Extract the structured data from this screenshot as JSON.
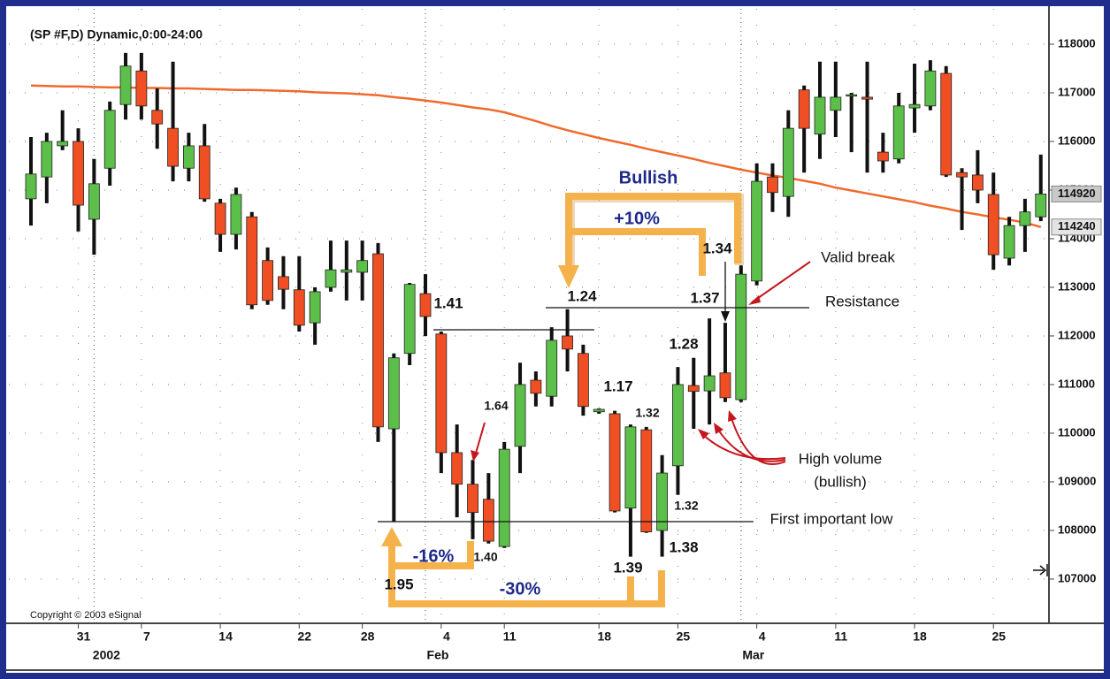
{
  "chart_data": {
    "type": "candlestick",
    "title": "(SP #F,D) Dynamic,0:00-24:00",
    "copyright": "Copyright © 2003 eSignal",
    "categories": [
      null,
      null,
      null,
      "31",
      null,
      null,
      null,
      "7",
      null,
      null,
      null,
      null,
      "14",
      null,
      null,
      null,
      null,
      "22",
      null,
      null,
      null,
      "28",
      null,
      null,
      null,
      null,
      "4",
      null,
      null,
      null,
      "11",
      null,
      null,
      null,
      null,
      null,
      "18",
      null,
      null,
      null,
      null,
      "25",
      null,
      null,
      null,
      null,
      "4",
      null,
      null,
      null,
      null,
      "11",
      null,
      null,
      null,
      null,
      "18",
      null,
      null,
      null,
      null,
      "25",
      null,
      null,
      null
    ],
    "category_groups": [
      null,
      null,
      null,
      null,
      "2002",
      null,
      null,
      null,
      null,
      null,
      null,
      null,
      null,
      null,
      null,
      null,
      null,
      null,
      null,
      null,
      null,
      null,
      null,
      null,
      null,
      "Feb",
      null,
      null,
      null,
      null,
      null,
      null,
      null,
      null,
      null,
      null,
      null,
      null,
      null,
      null,
      null,
      null,
      null,
      null,
      null,
      "Mar",
      null,
      null,
      null,
      null,
      null,
      null,
      null,
      null,
      null,
      null,
      null,
      null,
      null,
      null,
      null,
      null,
      null,
      null,
      null
    ],
    "open": [
      114820,
      115270,
      115910,
      116000,
      114400,
      115450,
      116760,
      117450,
      116640,
      116270,
      115450,
      115910,
      114730,
      114090,
      114450,
      113550,
      113220,
      112950,
      112270,
      113000,
      113310,
      113310,
      113690,
      110090,
      111640,
      112870,
      112040,
      109600,
      108950,
      108640,
      107670,
      109730,
      111090,
      110760,
      112000,
      111640,
      110440,
      110400,
      108460,
      110070,
      108000,
      109330,
      110980,
      110870,
      111240,
      110690,
      113130,
      115270,
      114870,
      117060,
      116150,
      116640,
      116950,
      116910,
      115780,
      115640,
      116690,
      116730,
      117400,
      115360,
      115310,
      114910,
      113600,
      114270,
      114450
    ],
    "high": [
      116090,
      116180,
      116640,
      116270,
      115640,
      116820,
      117820,
      117820,
      117090,
      117640,
      116180,
      116360,
      114820,
      115050,
      114550,
      113820,
      113640,
      113640,
      113000,
      113960,
      113960,
      113960,
      113910,
      111640,
      113090,
      113270,
      112090,
      110180,
      109450,
      109180,
      109820,
      111450,
      111270,
      112180,
      112550,
      111820,
      110510,
      110460,
      110180,
      110130,
      109550,
      111360,
      111550,
      112360,
      112270,
      113450,
      115550,
      115550,
      116640,
      117150,
      117640,
      117640,
      117000,
      117640,
      116180,
      117000,
      117600,
      117670,
      117550,
      115450,
      115820,
      115360,
      114450,
      114820,
      115730
    ],
    "low": [
      114270,
      114730,
      115820,
      114150,
      113670,
      115090,
      116450,
      116450,
      115850,
      115180,
      115180,
      114760,
      113730,
      113780,
      112550,
      112640,
      112550,
      112090,
      111820,
      112910,
      112730,
      112730,
      109820,
      108180,
      111400,
      112000,
      109180,
      108270,
      107820,
      107730,
      107640,
      109180,
      110550,
      110550,
      111270,
      110360,
      110400,
      108370,
      107460,
      107950,
      107460,
      108730,
      110090,
      110180,
      110640,
      110640,
      113040,
      114550,
      114450,
      115360,
      115640,
      116090,
      115780,
      115360,
      115360,
      115550,
      116180,
      116640,
      115270,
      114180,
      114730,
      113360,
      113450,
      113730,
      114360
    ],
    "close": [
      115330,
      116000,
      116000,
      114690,
      115130,
      116640,
      117550,
      116730,
      116360,
      115490,
      115910,
      114820,
      114090,
      114910,
      112640,
      112730,
      112960,
      112220,
      112910,
      113360,
      113360,
      113550,
      110130,
      111550,
      113060,
      112400,
      109600,
      108950,
      108370,
      107780,
      109670,
      111000,
      110820,
      111910,
      111730,
      110550,
      110490,
      108400,
      110130,
      107970,
      109180,
      111000,
      110860,
      111180,
      110730,
      113270,
      115180,
      114950,
      116270,
      116270,
      116910,
      116910,
      116960,
      116870,
      115600,
      116730,
      116760,
      117450,
      115310,
      115270,
      115000,
      113670,
      114270,
      114550,
      114920
    ],
    "up_color": "#5cbf4a",
    "down_color": "#f04e23",
    "overlay": {
      "color": "#ef6a2c",
      "values": [
        117150,
        117140,
        117130,
        117130,
        117120,
        117110,
        117110,
        117100,
        117100,
        117090,
        117090,
        117080,
        117070,
        117060,
        117060,
        117050,
        117040,
        117030,
        117010,
        117000,
        116990,
        116970,
        116950,
        116910,
        116880,
        116840,
        116800,
        116750,
        116700,
        116660,
        116600,
        116510,
        116420,
        116320,
        116230,
        116150,
        116070,
        116000,
        115930,
        115850,
        115780,
        115710,
        115640,
        115560,
        115490,
        115420,
        115360,
        115300,
        115250,
        115190,
        115130,
        115050,
        114990,
        114930,
        114870,
        114810,
        114750,
        114680,
        114620,
        114550,
        114500,
        114440,
        114390,
        114330,
        114240
      ]
    },
    "ylim": [
      106090,
      118400
    ],
    "yticks": [
      107000,
      108000,
      109000,
      110000,
      111000,
      112000,
      113000,
      114000,
      115000,
      116000,
      117000,
      118000
    ],
    "last_value_labels": [
      114920,
      114240
    ],
    "grid": true,
    "annotations": [
      "Bullish",
      "+10%",
      "-16%",
      "-30%",
      "1.41",
      "1.64",
      "1.24",
      "1.17",
      "1.32",
      "1.28",
      "1.34",
      "1.37",
      "1.32",
      "1.38",
      "1.39",
      "1.40",
      "1.95",
      "Valid break",
      "Resistance",
      "High volume",
      "(bullish)",
      "First important low"
    ]
  }
}
